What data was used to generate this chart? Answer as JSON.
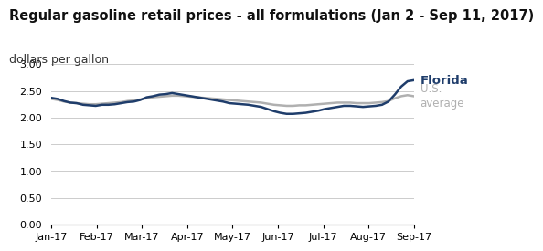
{
  "title": "Regular gasoline retail prices - all formulations (Jan 2 - Sep 11, 2017)",
  "ylabel": "dollars per gallon",
  "title_fontsize": 10.5,
  "ylabel_fontsize": 9,
  "ylim": [
    0.0,
    3.0
  ],
  "yticks": [
    0.0,
    0.5,
    1.0,
    1.5,
    2.0,
    2.5,
    3.0
  ],
  "xtick_labels": [
    "Jan-17",
    "Feb-17",
    "Mar-17",
    "Apr-17",
    "May-17",
    "Jun-17",
    "Jul-17",
    "Aug-17",
    "Sep-17"
  ],
  "florida_color": "#1f3d6b",
  "us_avg_color": "#b0b0b0",
  "florida_label": "Florida",
  "us_avg_label": "U.S.\naverage",
  "florida_values": [
    2.37,
    2.35,
    2.31,
    2.28,
    2.27,
    2.24,
    2.23,
    2.22,
    2.24,
    2.24,
    2.25,
    2.27,
    2.29,
    2.3,
    2.33,
    2.38,
    2.4,
    2.43,
    2.44,
    2.46,
    2.44,
    2.42,
    2.4,
    2.38,
    2.36,
    2.34,
    2.32,
    2.3,
    2.27,
    2.26,
    2.25,
    2.24,
    2.22,
    2.2,
    2.16,
    2.12,
    2.09,
    2.07,
    2.07,
    2.08,
    2.09,
    2.11,
    2.13,
    2.16,
    2.18,
    2.2,
    2.22,
    2.22,
    2.21,
    2.2,
    2.21,
    2.22,
    2.24,
    2.3,
    2.43,
    2.58,
    2.68,
    2.7
  ],
  "us_avg_values": [
    2.35,
    2.33,
    2.3,
    2.28,
    2.27,
    2.26,
    2.25,
    2.25,
    2.26,
    2.27,
    2.28,
    2.29,
    2.31,
    2.32,
    2.34,
    2.36,
    2.38,
    2.39,
    2.4,
    2.41,
    2.41,
    2.4,
    2.39,
    2.38,
    2.37,
    2.36,
    2.35,
    2.34,
    2.33,
    2.32,
    2.31,
    2.3,
    2.29,
    2.28,
    2.26,
    2.24,
    2.23,
    2.22,
    2.22,
    2.23,
    2.23,
    2.24,
    2.25,
    2.26,
    2.27,
    2.28,
    2.28,
    2.28,
    2.27,
    2.27,
    2.27,
    2.28,
    2.29,
    2.31,
    2.36,
    2.4,
    2.42,
    2.4
  ],
  "background_color": "#ffffff",
  "grid_color": "#cccccc"
}
